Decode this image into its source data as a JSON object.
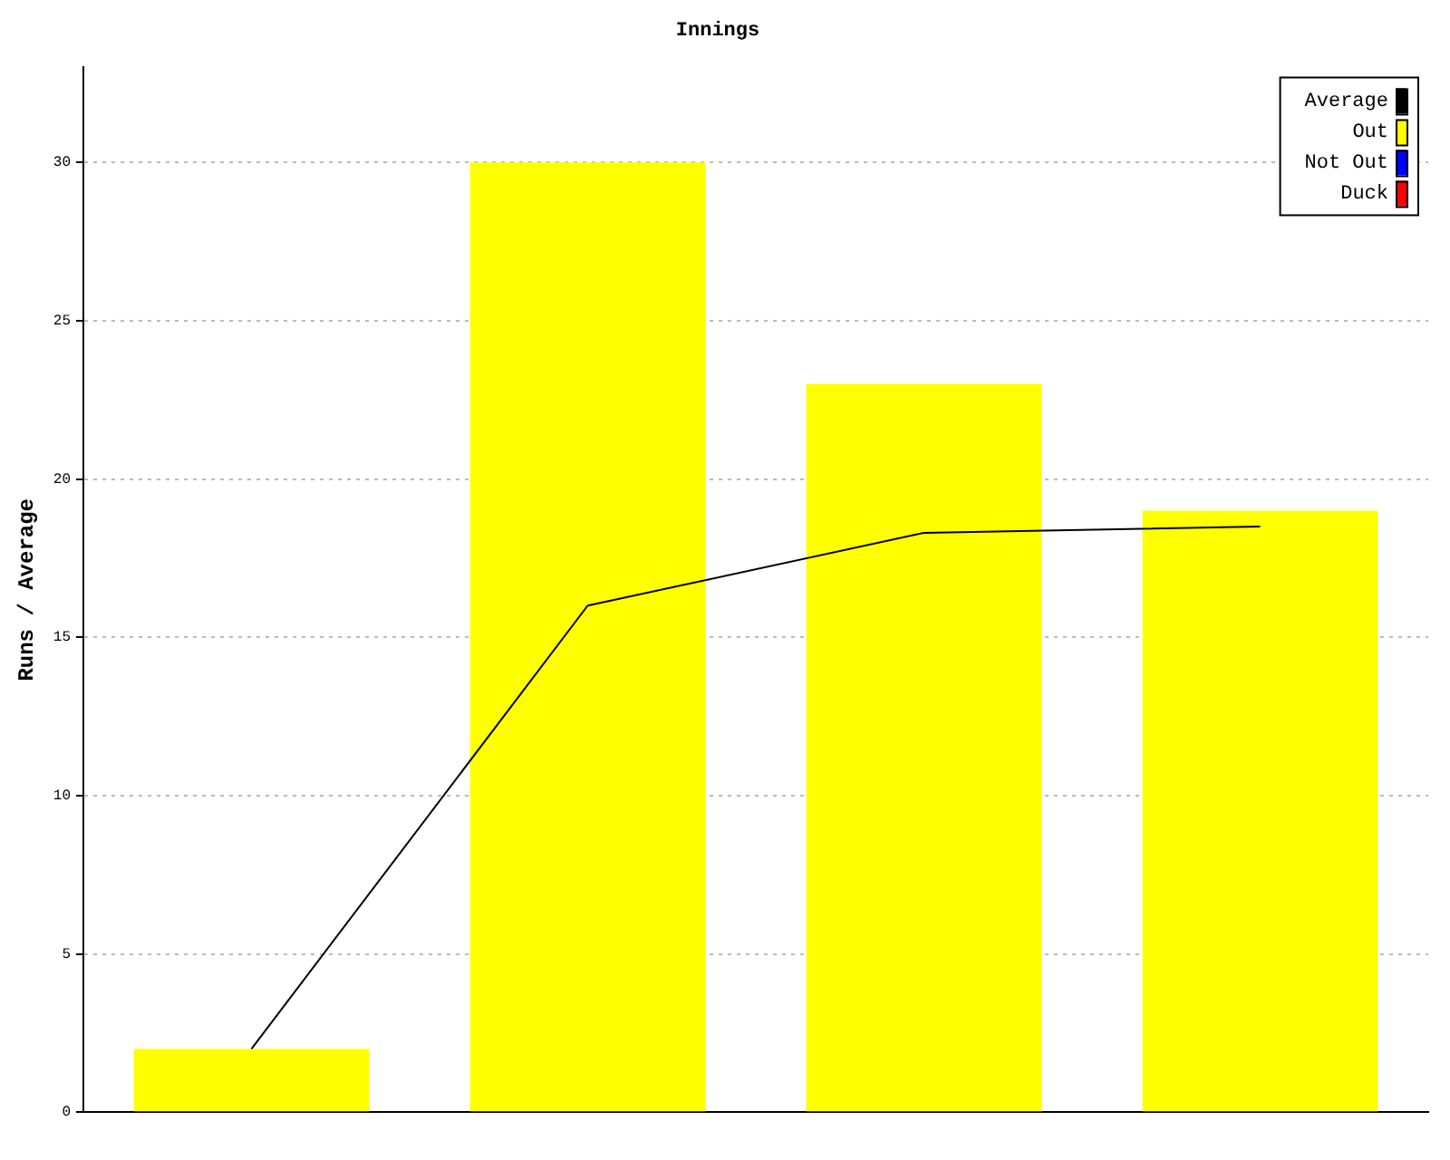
{
  "chart_data": {
    "type": "bar",
    "title": "Innings",
    "ylabel": "Runs / Average",
    "categories": [
      null,
      null,
      null,
      null
    ],
    "series": [
      {
        "name": "Average",
        "type": "line",
        "color": "#000000",
        "values": [
          2,
          16,
          18.3,
          18.5
        ]
      },
      {
        "name": "Out",
        "color": "#ffff00",
        "values": [
          2,
          30,
          23,
          19
        ]
      },
      {
        "name": "Not Out",
        "color": "#0000ff",
        "values": [
          null,
          null,
          null,
          null
        ]
      },
      {
        "name": "Duck",
        "color": "#ff0000",
        "values": [
          null,
          null,
          null,
          null
        ]
      }
    ],
    "ylim": [
      0,
      33
    ],
    "yticks": [
      0,
      5,
      10,
      15,
      20,
      25,
      30
    ],
    "grid": "y",
    "legend": "top right",
    "marker": "none"
  }
}
